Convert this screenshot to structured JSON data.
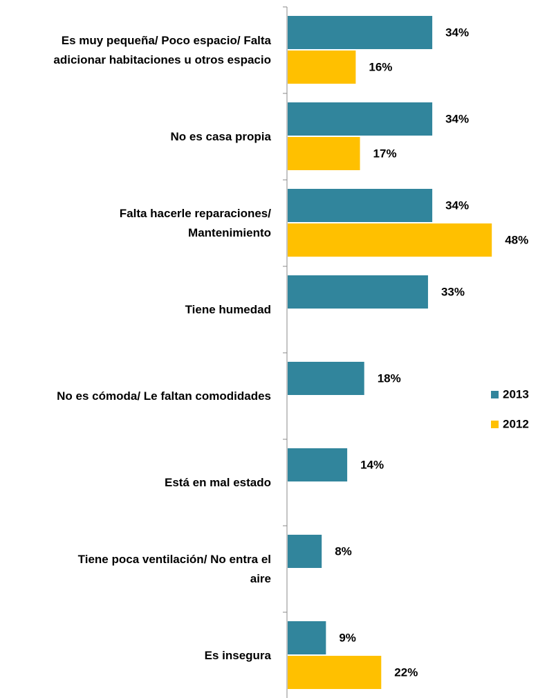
{
  "chart_data": {
    "type": "bar",
    "orientation": "horizontal",
    "categories": [
      "Es muy pequeña/ Poco espacio/ Falta\nadicionar habitaciones u otros espacio",
      "No es casa propia",
      "Falta hacerle reparaciones/\nMantenimiento",
      "Tiene humedad",
      "No es cómoda/ Le faltan comodidades",
      "Está en mal estado",
      "Tiene poca ventilación/ No entra el\naire",
      "Es insegura"
    ],
    "series": [
      {
        "name": "2013",
        "color": "#31859c",
        "values": [
          34,
          34,
          34,
          33,
          18,
          14,
          8,
          9
        ],
        "value_labels": [
          "34%",
          "34%",
          "34%",
          "33%",
          "18%",
          "14%",
          "8%",
          "9%"
        ]
      },
      {
        "name": "2012",
        "color": "#ffc000",
        "values": [
          16,
          17,
          48,
          null,
          null,
          null,
          null,
          22
        ],
        "value_labels": [
          "16%",
          "17%",
          "48%",
          null,
          null,
          null,
          null,
          "22%"
        ]
      }
    ],
    "legend": "right"
  }
}
